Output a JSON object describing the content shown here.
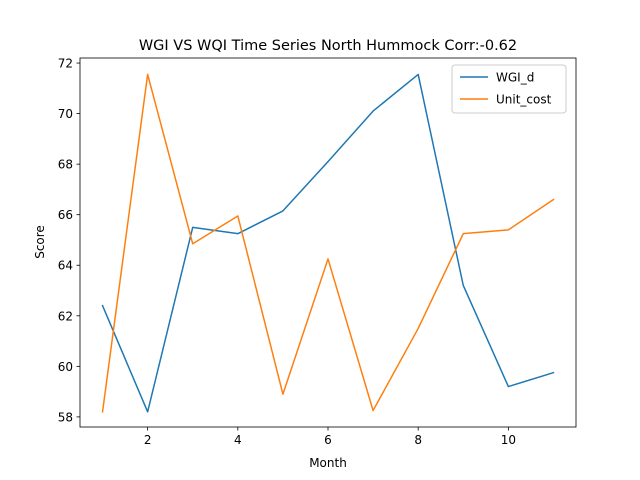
{
  "chart_data": {
    "type": "line",
    "title": "WGI VS WQI Time Series North Hummock Corr:-0.62",
    "xlabel": "Month",
    "ylabel": "Score",
    "xlim": [
      0.5,
      11.5
    ],
    "ylim": [
      57.6,
      72.2
    ],
    "x_ticks": [
      2,
      4,
      6,
      8,
      10
    ],
    "y_ticks": [
      58,
      60,
      62,
      64,
      66,
      68,
      70,
      72
    ],
    "grid": false,
    "legend_position": "top-right",
    "x": [
      1,
      2,
      3,
      4,
      5,
      6,
      7,
      8,
      9,
      10,
      11
    ],
    "series": [
      {
        "name": "WGI_d",
        "color": "#1f77b4",
        "values": [
          62.4,
          58.2,
          65.5,
          65.25,
          66.15,
          68.1,
          70.1,
          71.55,
          63.2,
          59.2,
          59.75
        ]
      },
      {
        "name": "Unit_cost",
        "color": "#ff7f0e",
        "values": [
          58.2,
          71.55,
          64.85,
          65.95,
          58.9,
          64.25,
          58.25,
          61.5,
          65.25,
          65.4,
          66.6
        ]
      }
    ]
  }
}
